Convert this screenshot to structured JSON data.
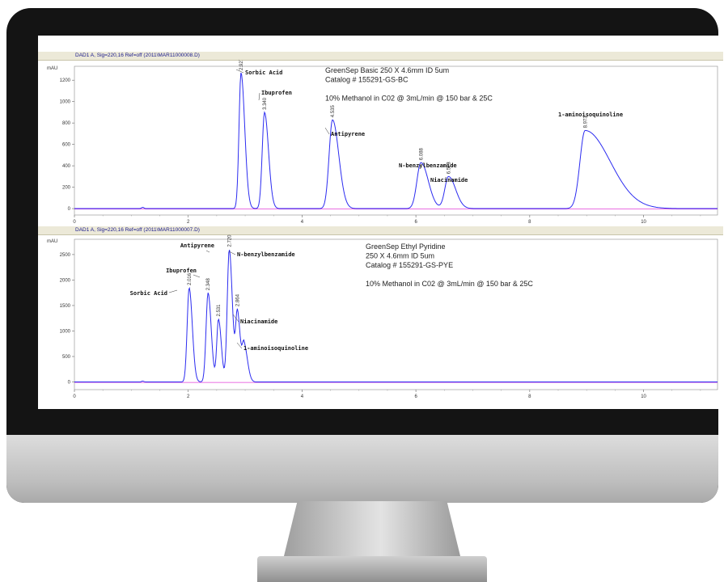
{
  "colors": {
    "trace": "#2c2cf0",
    "baseline": "#e23fd8",
    "monitor_bezel": "#141414",
    "monitor_chin": "#c8c8c8",
    "signal_bar": "#ece9d8"
  },
  "chart_data": [
    {
      "type": "line",
      "signal_label": "DAD1 A, Sig=220,16 Ref=off (2011\\MAR11000008.D)",
      "ylabel": "mAU",
      "xlim": [
        0,
        11.3
      ],
      "ylim": [
        -60,
        1330
      ],
      "x_ticks": [
        0,
        2,
        4,
        6,
        8,
        10
      ],
      "y_ticks": [
        0,
        200,
        400,
        600,
        800,
        1000,
        1200
      ],
      "annotations": [
        "GreenSep Basic 250 X 4.6mm ID 5um",
        "Catalog # 155291-GS-BC",
        "",
        "10% Methanol in C02 @ 3mL/min @ 150 bar & 25C"
      ],
      "peaks": [
        {
          "name": "Sorbic Acid",
          "rt": 2.927,
          "rt_label": "2.927",
          "height": 1270,
          "sigma": 0.035,
          "tail": 0.03
        },
        {
          "name": "Ibuprofen",
          "rt": 3.34,
          "rt_label": "3.340",
          "height": 900,
          "sigma": 0.04,
          "tail": 0.03
        },
        {
          "name": "Antipyrene",
          "rt": 4.535,
          "rt_label": "4.535",
          "height": 830,
          "sigma": 0.06,
          "tail": 0.05
        },
        {
          "name": "N-benzylbenzamide",
          "rt": 6.088,
          "rt_label": "6.088",
          "height": 430,
          "sigma": 0.07,
          "tail": 0.06
        },
        {
          "name": "Niacinamide",
          "rt": 6.573,
          "rt_label": "6.573",
          "height": 300,
          "sigma": 0.065,
          "tail": 0.06
        },
        {
          "name": "1-aminoisoquinoline",
          "rt": 8.973,
          "rt_label": "8.973",
          "height": 730,
          "sigma": 0.09,
          "tail": 0.35
        }
      ]
    },
    {
      "type": "line",
      "signal_label": "DAD1 A, Sig=220,16 Ref=off (2011\\MAR11000007.D)",
      "ylabel": "mAU",
      "xlim": [
        0,
        11.3
      ],
      "ylim": [
        -150,
        2800
      ],
      "x_ticks": [
        0,
        2,
        4,
        6,
        8,
        10
      ],
      "y_ticks": [
        0,
        500,
        1000,
        1500,
        2000,
        2500
      ],
      "annotations": [
        "GreenSep Ethyl Pyridine",
        "250 X 4.6mm ID 5um",
        "Catalog # 155291-GS-PYE",
        "",
        "10% Methanol in C02 @ 3mL/min @ 150 bar & 25C"
      ],
      "peaks": [
        {
          "name": "Sorbic Acid",
          "rt": 2.016,
          "rt_label": "2.016",
          "height": 1850,
          "sigma": 0.035,
          "tail": 0.02
        },
        {
          "name": "Ibuprofen",
          "rt": 2.348,
          "rt_label": "2.348",
          "height": 1750,
          "sigma": 0.035,
          "tail": 0.02
        },
        {
          "name": "",
          "rt": 2.531,
          "rt_label": "2.531",
          "height": 1230,
          "sigma": 0.03,
          "tail": 0.02
        },
        {
          "name": "Antipyrene",
          "rt": 2.72,
          "rt_label": "2.720",
          "height": 2600,
          "sigma": 0.035,
          "tail": 0.02
        },
        {
          "name": "N-benzylbenzamide",
          "rt": 2.72,
          "rt_label": "",
          "height": 0,
          "sigma": 0.035,
          "tail": 0.02
        },
        {
          "name": "Niacinamide",
          "rt": 2.864,
          "rt_label": "2.864",
          "height": 1350,
          "sigma": 0.03,
          "tail": 0.02
        },
        {
          "name": "1-aminoisoquinoline",
          "rt": 2.98,
          "rt_label": "",
          "height": 720,
          "sigma": 0.03,
          "tail": 0.03
        }
      ]
    }
  ]
}
